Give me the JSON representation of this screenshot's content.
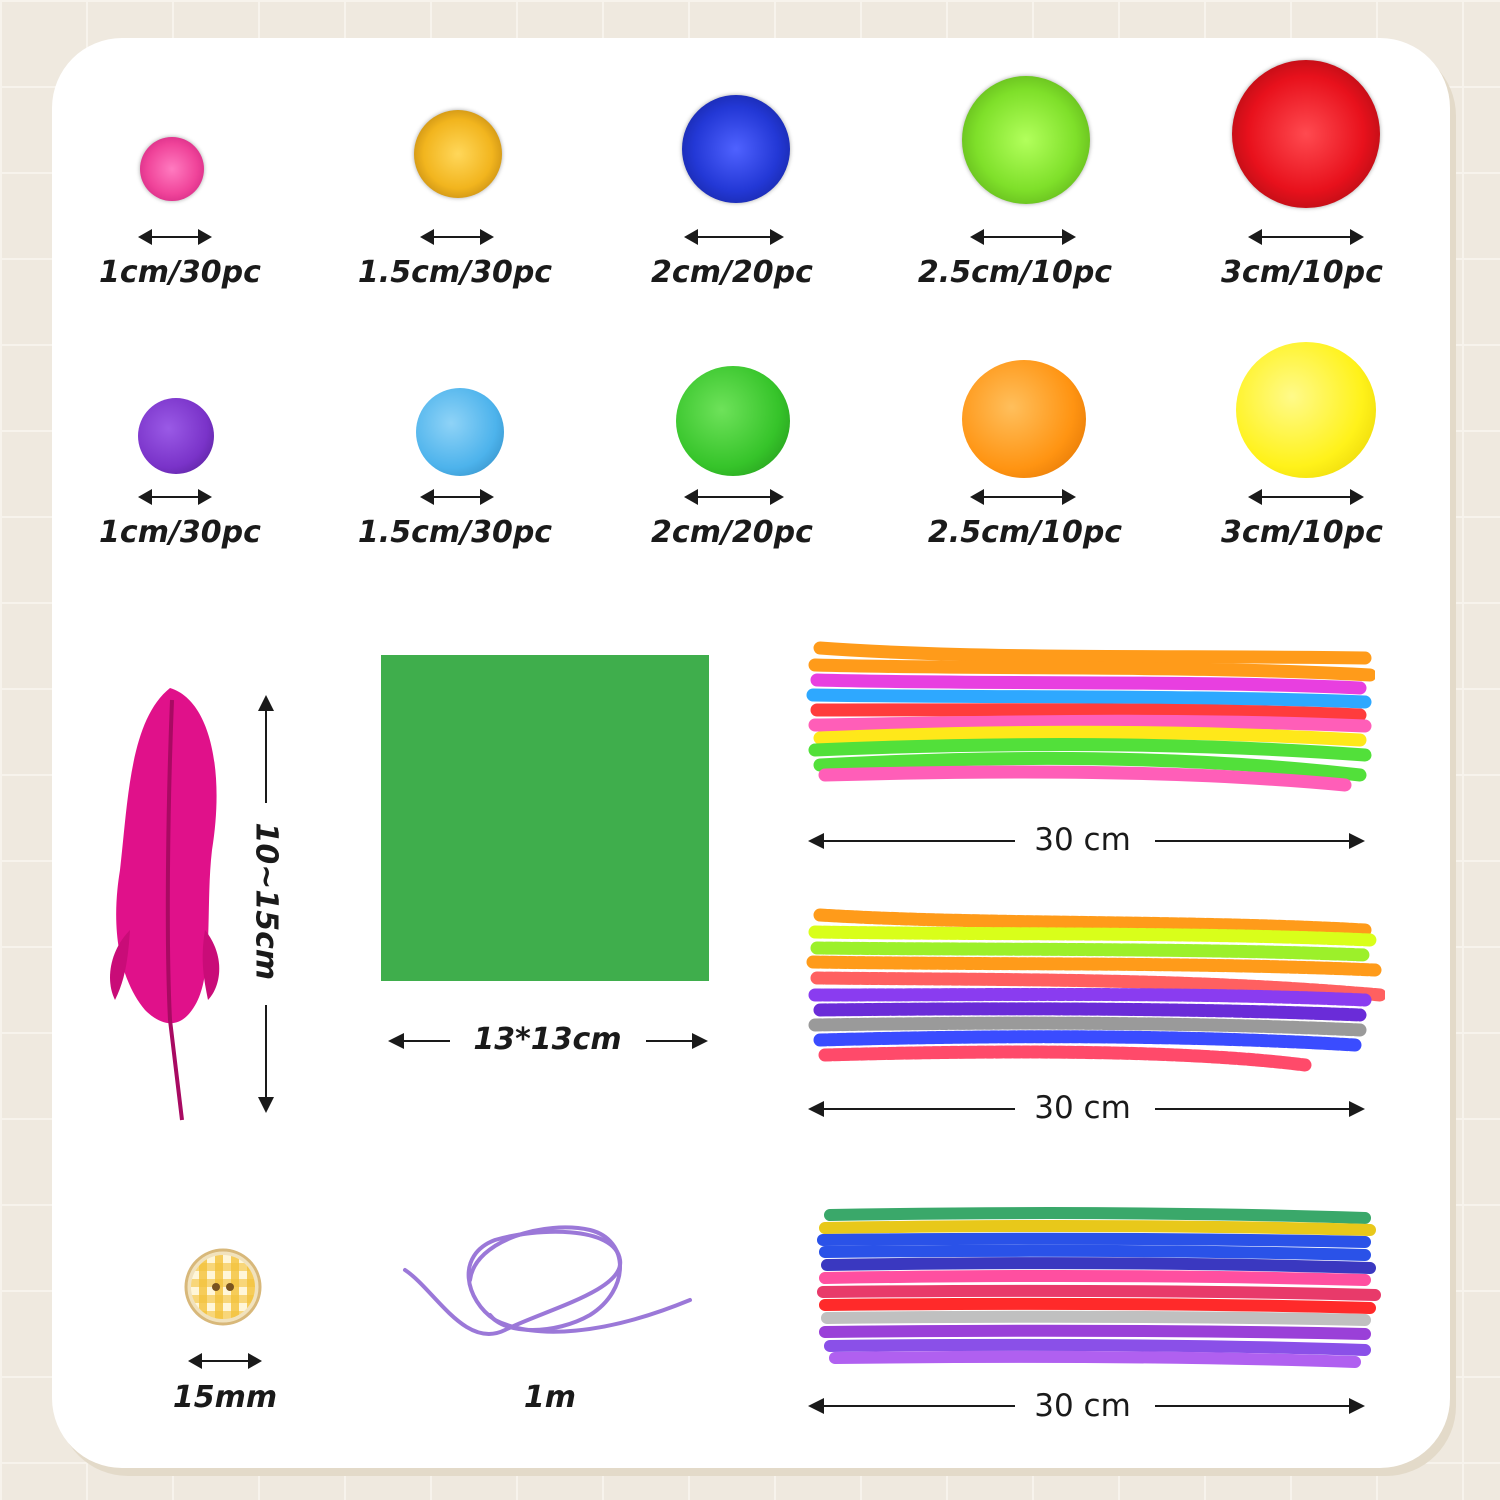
{
  "tinsel_poms": [
    {
      "label": "1cm/30pc",
      "color": "#f0449a"
    },
    {
      "label": "1.5cm/30pc",
      "color": "#f2b51e"
    },
    {
      "label": "2cm/20pc",
      "color": "#2338d6"
    },
    {
      "label": "2.5cm/10pc",
      "color": "#7fe02a"
    },
    {
      "label": "3cm/10pc",
      "color": "#e8111c"
    }
  ],
  "plain_poms": [
    {
      "label": "1cm/30pc",
      "color": "#7a33c9"
    },
    {
      "label": "1.5cm/30pc",
      "color": "#4db3ec"
    },
    {
      "label": "2cm/20pc",
      "color": "#36c42a"
    },
    {
      "label": "2.5cm/10pc",
      "color": "#ff9412"
    },
    {
      "label": "3cm/10pc",
      "color": "#fff21a"
    }
  ],
  "feather": {
    "label": "10~15cm",
    "color": "#e0118a"
  },
  "felt": {
    "label": "13*13cm",
    "color": "#3fae4c"
  },
  "pipe_cleaners": [
    {
      "label": "30 cm"
    },
    {
      "label": "30 cm"
    },
    {
      "label": "30 cm"
    }
  ],
  "button": {
    "label": "15mm"
  },
  "cord": {
    "label": "1m",
    "color": "#9b78d8"
  }
}
